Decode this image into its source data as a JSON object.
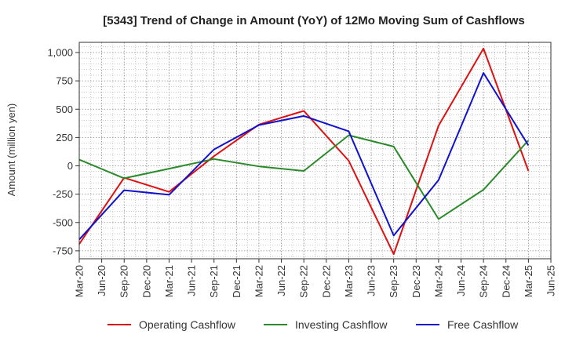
{
  "chart_data": {
    "type": "line",
    "title": "[5343]  Trend of Change in Amount (YoY) of 12Mo Moving Sum of Cashflows",
    "ylabel": "Amount (million yen)",
    "xlabel": "",
    "ylim": [
      -820,
      1090
    ],
    "yticks": [
      1000,
      750,
      500,
      250,
      0,
      -250,
      -500,
      -750
    ],
    "ytick_labels": [
      "1,000",
      "750",
      "500",
      "250",
      "0",
      "-250",
      "-500",
      "-750"
    ],
    "categories": [
      "Mar-20",
      "Jun-20",
      "Sep-20",
      "Dec-20",
      "Mar-21",
      "Jun-21",
      "Sep-21",
      "Dec-21",
      "Mar-22",
      "Jun-22",
      "Sep-22",
      "Dec-22",
      "Mar-23",
      "Jun-23",
      "Sep-23",
      "Dec-23",
      "Mar-24",
      "Jun-24",
      "Sep-24",
      "Dec-24",
      "Mar-25",
      "Jun-25"
    ],
    "series": [
      {
        "name": "Operating Cashflow",
        "color": "#dd1111",
        "x": [
          "Mar-20",
          "Sep-20",
          "Mar-21",
          "Sep-21",
          "Mar-22",
          "Sep-22",
          "Mar-23",
          "Sep-23",
          "Mar-24",
          "Sep-24",
          "Mar-25"
        ],
        "values": [
          -690,
          -105,
          -230,
          85,
          365,
          485,
          45,
          -780,
          355,
          1035,
          -45
        ]
      },
      {
        "name": "Investing Cashflow",
        "color": "#2a8a2a",
        "x": [
          "Mar-20",
          "Sep-20",
          "Mar-21",
          "Sep-21",
          "Mar-22",
          "Sep-22",
          "Mar-23",
          "Sep-23",
          "Mar-24",
          "Sep-24",
          "Mar-25"
        ],
        "values": [
          55,
          -110,
          -25,
          60,
          -5,
          -45,
          270,
          170,
          -470,
          -210,
          225
        ]
      },
      {
        "name": "Free Cashflow",
        "color": "#1111cc",
        "x": [
          "Mar-20",
          "Sep-20",
          "Mar-21",
          "Sep-21",
          "Mar-22",
          "Sep-22",
          "Mar-23",
          "Sep-23",
          "Mar-24",
          "Sep-24",
          "Mar-25"
        ],
        "values": [
          -650,
          -215,
          -255,
          145,
          360,
          440,
          305,
          -615,
          -125,
          820,
          180
        ]
      }
    ],
    "legend": "bottom",
    "grid": true
  }
}
